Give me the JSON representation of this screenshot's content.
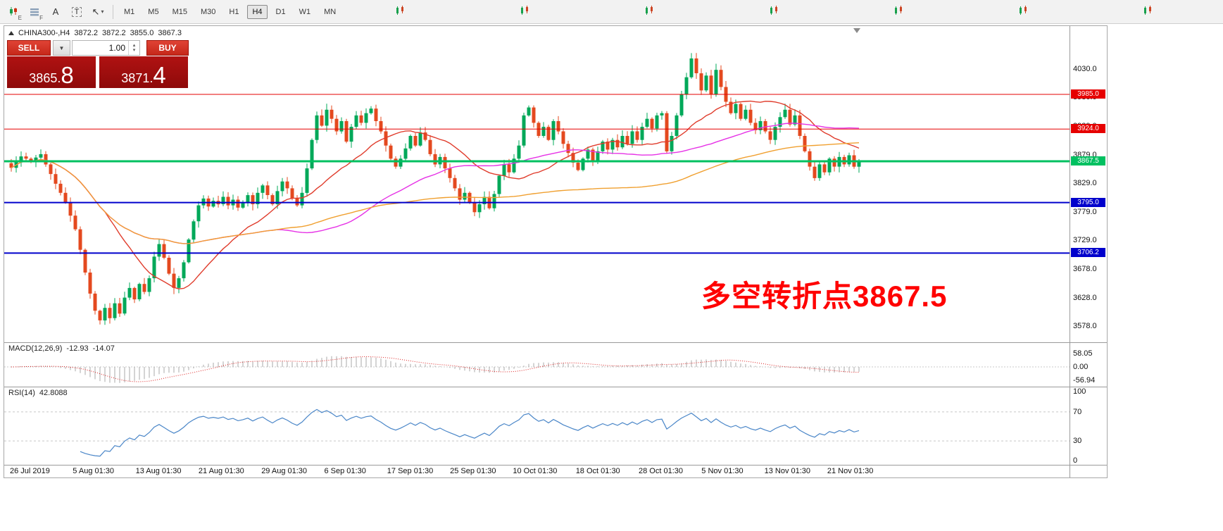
{
  "toolbar": {
    "icons": [
      {
        "name": "candlestick-chart-icon",
        "sub": "E"
      },
      {
        "name": "grid-icon",
        "sub": "F"
      },
      {
        "name": "text-tool",
        "label": "A"
      },
      {
        "name": "template-tool",
        "label": "T"
      },
      {
        "name": "cursor-tool",
        "glyph": "↖",
        "caret": "▾"
      }
    ],
    "timeframes": [
      "M1",
      "M5",
      "M15",
      "M30",
      "H1",
      "H4",
      "D1",
      "W1",
      "MN"
    ],
    "active_timeframe": "H4",
    "mini_icons_count": 7
  },
  "symbol_bar": {
    "symbol": "CHINA300-,H4",
    "open": "3872.2",
    "high": "3872.2",
    "low": "3855.0",
    "close": "3867.3"
  },
  "trade_panel": {
    "sell_label": "SELL",
    "buy_label": "BUY",
    "volume": "1.00",
    "sell_price": {
      "base": "3865.",
      "big": "8"
    },
    "buy_price": {
      "base": "3871.",
      "big": "4"
    }
  },
  "levels": [
    {
      "price": "3985.0",
      "value": 3985.0,
      "color": "#e60000",
      "width": 1
    },
    {
      "price": "3924.0",
      "value": 3924.0,
      "color": "#e60000",
      "width": 1
    },
    {
      "price": "3867.5",
      "value": 3867.5,
      "color": "#00c060",
      "width": 3
    },
    {
      "price": "3795.0",
      "value": 3795.0,
      "color": "#0000cc",
      "width": 2
    },
    {
      "price": "3706.2",
      "value": 3706.2,
      "color": "#0000cc",
      "width": 2
    }
  ],
  "price_axis": {
    "ticks": [
      {
        "label": "4030.0",
        "value": 4030.0
      },
      {
        "label": "3980.0",
        "value": 3980.0
      },
      {
        "label": "3929.0",
        "value": 3929.0
      },
      {
        "label": "3879.0",
        "value": 3879.0
      },
      {
        "label": "3829.0",
        "value": 3829.0
      },
      {
        "label": "3779.0",
        "value": 3779.0
      },
      {
        "label": "3729.0",
        "value": 3729.0
      },
      {
        "label": "3678.0",
        "value": 3678.0
      },
      {
        "label": "3628.0",
        "value": 3628.0
      },
      {
        "label": "3578.0",
        "value": 3578.0
      }
    ]
  },
  "macd": {
    "label": "MACD(12,26,9)",
    "value_main": "-12.93",
    "value_signal": "-14.07",
    "ticks": [
      {
        "label": "58.05",
        "value": 58.05
      },
      {
        "label": "0.00",
        "value": 0
      },
      {
        "label": "-56.94",
        "value": -56.94
      }
    ]
  },
  "rsi": {
    "label": "RSI(14)",
    "value": "42.8088",
    "ticks": [
      {
        "label": "100",
        "value": 100
      },
      {
        "label": "70",
        "value": 70
      },
      {
        "label": "30",
        "value": 30
      },
      {
        "label": "0",
        "value": 0
      }
    ],
    "dashed_levels": [
      70,
      30
    ]
  },
  "time_axis": {
    "labels": [
      "26 Jul 2019",
      "5 Aug 01:30",
      "13 Aug 01:30",
      "21 Aug 01:30",
      "29 Aug 01:30",
      "6 Sep 01:30",
      "17 Sep 01:30",
      "25 Sep 01:30",
      "10 Oct 01:30",
      "18 Oct 01:30",
      "28 Oct 01:30",
      "5 Nov 01:30",
      "13 Nov 01:30",
      "21 Nov 01:30"
    ]
  },
  "annotation": {
    "text": "多空转折点3867.5",
    "color": "#ff0000"
  },
  "chart_data": {
    "type": "candlestick",
    "symbol": "CHINA300-",
    "timeframe": "H4",
    "current_bar": {
      "open": 3872.2,
      "high": 3872.2,
      "low": 3855.0,
      "close": 3867.3
    },
    "y_range": [
      3557,
      4100
    ],
    "horizontal_lines": [
      3985.0,
      3924.0,
      3867.5,
      3795.0,
      3706.2
    ],
    "up_color": "#00a859",
    "down_color": "#e4491f",
    "ma": [
      {
        "name": "ma-fast",
        "color": "#e03c2c",
        "period": 20
      },
      {
        "name": "ma-mid",
        "color": "#e632e6",
        "period": 55
      },
      {
        "name": "ma-slow",
        "color": "#f0a030",
        "period": 120
      }
    ],
    "closes": [
      3856,
      3866,
      3876,
      3872,
      3868,
      3874,
      3880,
      3862,
      3845,
      3828,
      3812,
      3795,
      3772,
      3748,
      3712,
      3672,
      3635,
      3605,
      3588,
      3610,
      3592,
      3618,
      3600,
      3628,
      3645,
      3625,
      3652,
      3638,
      3662,
      3700,
      3722,
      3698,
      3670,
      3645,
      3662,
      3690,
      3730,
      3762,
      3790,
      3802,
      3788,
      3798,
      3792,
      3805,
      3790,
      3800,
      3786,
      3795,
      3808,
      3792,
      3812,
      3825,
      3808,
      3792,
      3815,
      3832,
      3820,
      3802,
      3790,
      3812,
      3855,
      3905,
      3948,
      3930,
      3958,
      3942,
      3920,
      3938,
      3902,
      3928,
      3948,
      3935,
      3952,
      3960,
      3938,
      3920,
      3895,
      3872,
      3858,
      3872,
      3890,
      3912,
      3895,
      3918,
      3905,
      3880,
      3862,
      3875,
      3855,
      3838,
      3820,
      3800,
      3812,
      3795,
      3778,
      3792,
      3805,
      3785,
      3810,
      3842,
      3862,
      3848,
      3872,
      3895,
      3948,
      3962,
      3935,
      3912,
      3928,
      3905,
      3938,
      3920,
      3898,
      3882,
      3865,
      3852,
      3872,
      3888,
      3868,
      3885,
      3902,
      3888,
      3905,
      3892,
      3912,
      3898,
      3920,
      3905,
      3928,
      3942,
      3925,
      3948,
      3952,
      3885,
      3912,
      3948,
      3985,
      4015,
      4048,
      4022,
      3992,
      4018,
      3985,
      4028,
      3998,
      3972,
      3952,
      3968,
      3942,
      3958,
      3935,
      3922,
      3938,
      3920,
      3905,
      3928,
      3945,
      3958,
      3932,
      3948,
      3912,
      3885,
      3858,
      3838,
      3862,
      3848,
      3872,
      3858,
      3875,
      3862,
      3878,
      3858,
      3867
    ]
  }
}
